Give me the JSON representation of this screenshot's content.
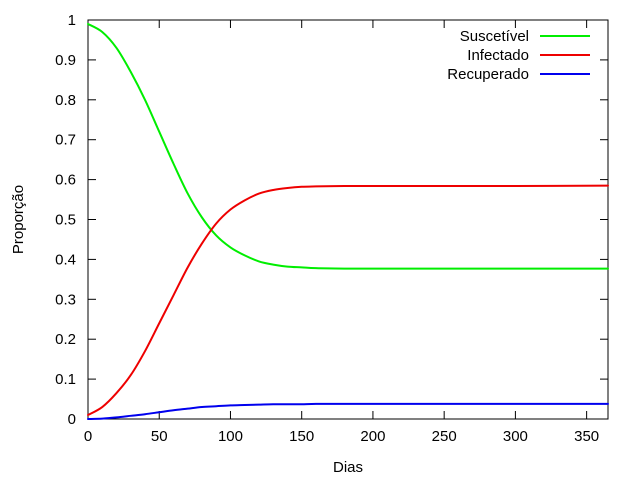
{
  "chart_data": {
    "type": "line",
    "xlabel": "Dias",
    "ylabel": "Proporção",
    "xlim": [
      0,
      365
    ],
    "ylim": [
      0,
      1
    ],
    "x_ticks": [
      0,
      50,
      100,
      150,
      200,
      250,
      300,
      350
    ],
    "y_ticks": [
      0,
      0.1,
      0.2,
      0.3,
      0.4,
      0.5,
      0.6,
      0.7,
      0.8,
      0.9,
      1
    ],
    "y_tick_labels": [
      "0",
      "0.1",
      "0.2",
      "0.3",
      "0.4",
      "0.5",
      "0.6",
      "0.7",
      "0.8",
      "0.9",
      "1"
    ],
    "grid": false,
    "legend_position": "top-right",
    "series": [
      {
        "name": "Suscetível",
        "color": "#00ee00",
        "x": [
          0,
          10,
          20,
          30,
          40,
          50,
          60,
          70,
          80,
          90,
          100,
          110,
          120,
          130,
          140,
          150,
          160,
          180,
          200,
          250,
          300,
          365
        ],
        "y": [
          0.99,
          0.97,
          0.93,
          0.87,
          0.8,
          0.72,
          0.64,
          0.565,
          0.505,
          0.46,
          0.43,
          0.41,
          0.395,
          0.387,
          0.382,
          0.38,
          0.378,
          0.377,
          0.377,
          0.377,
          0.377,
          0.377
        ]
      },
      {
        "name": "Infectado",
        "color": "#ee0000",
        "x": [
          0,
          10,
          20,
          30,
          40,
          50,
          60,
          70,
          80,
          90,
          100,
          110,
          120,
          130,
          140,
          150,
          160,
          180,
          200,
          250,
          300,
          365
        ],
        "y": [
          0.01,
          0.03,
          0.065,
          0.11,
          0.17,
          0.24,
          0.31,
          0.38,
          0.44,
          0.49,
          0.525,
          0.548,
          0.565,
          0.574,
          0.579,
          0.582,
          0.583,
          0.584,
          0.584,
          0.584,
          0.584,
          0.585
        ]
      },
      {
        "name": "Recuperado",
        "color": "#0000ee",
        "x": [
          0,
          10,
          20,
          30,
          40,
          50,
          60,
          70,
          80,
          90,
          100,
          110,
          120,
          130,
          140,
          150,
          160,
          180,
          200,
          250,
          300,
          365
        ],
        "y": [
          0.0,
          0.001,
          0.004,
          0.008,
          0.012,
          0.017,
          0.022,
          0.026,
          0.03,
          0.032,
          0.034,
          0.035,
          0.036,
          0.037,
          0.037,
          0.037,
          0.038,
          0.038,
          0.038,
          0.038,
          0.038,
          0.038
        ]
      }
    ]
  }
}
